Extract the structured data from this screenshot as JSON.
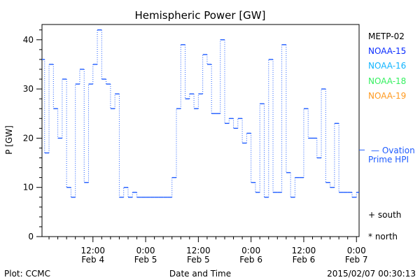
{
  "chart_data": {
    "type": "line",
    "step": true,
    "title": "Hemispheric Power [GW]",
    "xlabel": "Date and Time",
    "ylabel": "P [GW]",
    "ylim": [
      0,
      43
    ],
    "yticks": [
      0,
      10,
      20,
      30,
      40
    ],
    "x_units": "hours since Feb 4 0:00",
    "xlim": [
      0.4,
      72.6
    ],
    "xticks": [
      {
        "hour": 12,
        "time": "12:00",
        "date": "Feb 4"
      },
      {
        "hour": 24,
        "time": "0:00",
        "date": "Feb 5"
      },
      {
        "hour": 36,
        "time": "12:00",
        "date": "Feb 5"
      },
      {
        "hour": 48,
        "time": "0:00",
        "date": "Feb 6"
      },
      {
        "hour": 60,
        "time": "12:00",
        "date": "Feb 6"
      },
      {
        "hour": 72,
        "time": "0:00",
        "date": "Feb 7"
      }
    ],
    "series": [
      {
        "name": "Ovation Prime HPI",
        "color": "#1f5cff",
        "start_hour": 0,
        "values": [
          36,
          17,
          35,
          26,
          20,
          32,
          10,
          8,
          31,
          34,
          11,
          31,
          35,
          42,
          32,
          31,
          26,
          29,
          8,
          10,
          8,
          9,
          8,
          8,
          8,
          8,
          8,
          8,
          8,
          8,
          12,
          26,
          39,
          28,
          29,
          26,
          29,
          37,
          35,
          25,
          25,
          40,
          23,
          24,
          22,
          24,
          19,
          21,
          11,
          9,
          27,
          8,
          36,
          9,
          9,
          39,
          13,
          8,
          12,
          12,
          26,
          20,
          20,
          16,
          30,
          11,
          10,
          23,
          9,
          9,
          9,
          8,
          9
        ]
      }
    ],
    "mean_marker": 17.6,
    "legend": {
      "placement": "right",
      "satellites": [
        {
          "name": "METP-02",
          "color": "#000000"
        },
        {
          "name": "NOAA-15",
          "color": "#0a2cff"
        },
        {
          "name": "NOAA-16",
          "color": "#10b4ff"
        },
        {
          "name": "NOAA-18",
          "color": "#35f060"
        },
        {
          "name": "NOAA-19",
          "color": "#ff9a20"
        }
      ],
      "model_line1": "— Ovation",
      "model_line2": "Prime HPI",
      "south": "+ south",
      "north": "* north"
    }
  },
  "footer": {
    "left": "Plot: CCMC",
    "center": "Date and Time",
    "right": "2015/02/07 00:30:13"
  }
}
